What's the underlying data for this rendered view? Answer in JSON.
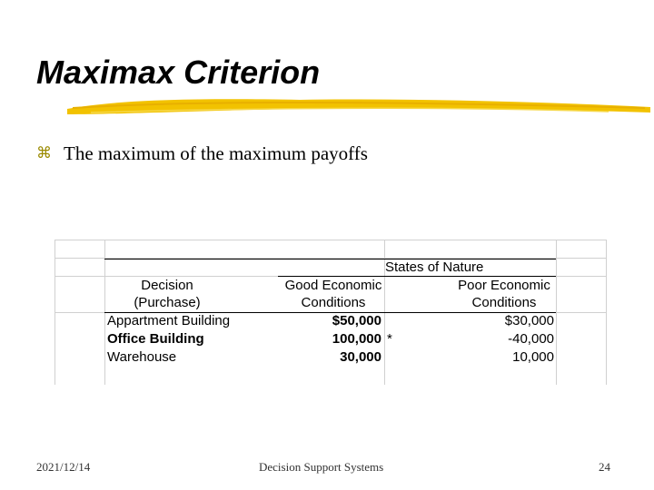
{
  "slide": {
    "title": "Maximax Criterion",
    "bullet": "The maximum of the maximum payoffs",
    "bullet_icon": "z-bullet-icon",
    "accent_color": "#f2c200"
  },
  "table": {
    "group_header": "States of Nature",
    "col_decision_line1": "Decision",
    "col_decision_line2": "(Purchase)",
    "col_good_line1": "Good Economic",
    "col_good_line2": "Conditions",
    "col_poor_line1": "Poor Economic",
    "col_poor_line2": "Conditions",
    "rows": [
      {
        "decision": "Appartment Building",
        "good": "$50,000",
        "mark": "",
        "poor": "$30,000"
      },
      {
        "decision": "Office Building",
        "good": "100,000",
        "mark": "*",
        "poor": "-40,000"
      },
      {
        "decision": "Warehouse",
        "good": "30,000",
        "mark": "",
        "poor": "10,000"
      }
    ]
  },
  "footer": {
    "date": "2021/12/14",
    "center": "Decision Support Systems",
    "page": "24"
  }
}
